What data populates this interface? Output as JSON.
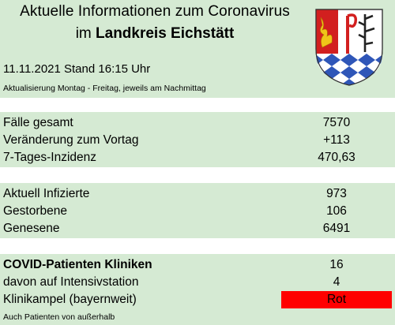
{
  "header": {
    "title_line1": "Aktuelle Informationen zum Coronavirus",
    "title_line2_prefix": "im ",
    "title_line2_bold": "Landkreis Eichstätt",
    "stand": "11.11.2021 Stand 16:15 Uhr",
    "update_note": "Aktualisierung Montag - Freitag, jeweils am Nachmittag"
  },
  "crest": {
    "icon": "coat-of-arms-icon",
    "colors": {
      "red": "#d21f1f",
      "blue": "#2f56b8",
      "white": "#ffffff",
      "gold": "#f0c419"
    }
  },
  "section1": {
    "rows": [
      {
        "label": "Fälle gesamt",
        "value": "7570"
      },
      {
        "label": "Veränderung zum Vortag",
        "value": "+113"
      },
      {
        "label": "7-Tages-Inzidenz",
        "value": "470,63"
      }
    ]
  },
  "section2": {
    "rows": [
      {
        "label": "Aktuell Infizierte",
        "value": "973"
      },
      {
        "label": "Gestorbene",
        "value": "106"
      },
      {
        "label": "Genesene",
        "value": "6491"
      }
    ]
  },
  "section3": {
    "rows": [
      {
        "label": "COVID-Patienten Kliniken",
        "value": "16"
      },
      {
        "label": "davon auf Intensivstation",
        "value": "4"
      },
      {
        "label": "Klinikampel (bayernweit)",
        "value": "Rot"
      }
    ],
    "ampel_color": "#ff0000"
  },
  "footer": {
    "note": "Auch Patienten von außerhalb"
  }
}
